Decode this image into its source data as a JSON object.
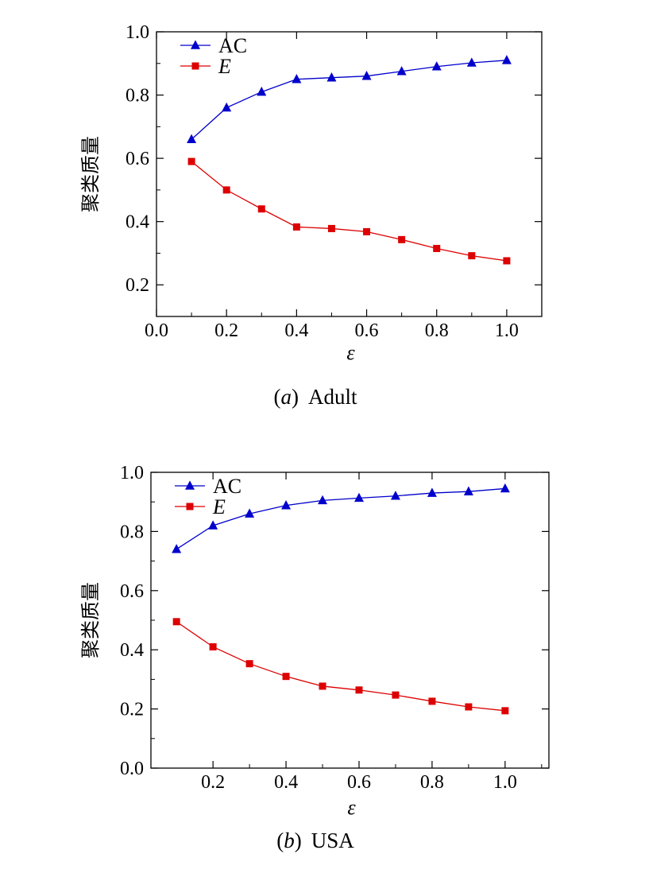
{
  "chart_data": [
    {
      "type": "line",
      "caption_tag": "a",
      "caption_name": "Adult",
      "xlabel": "ε",
      "ylabel": "聚类质量",
      "xlim": [
        0.0,
        1.1
      ],
      "ylim": [
        0.1,
        1.0
      ],
      "xticks": [
        "0.0",
        "0.2",
        "0.4",
        "0.6",
        "0.8",
        "1.0"
      ],
      "yticks": [
        "0.2",
        "0.4",
        "0.6",
        "0.8",
        "1.0"
      ],
      "grid": false,
      "legend_position": "top-left",
      "x": [
        0.1,
        0.2,
        0.3,
        0.4,
        0.5,
        0.6,
        0.7,
        0.8,
        0.9,
        1.0
      ],
      "series": [
        {
          "name": "AC",
          "italic": false,
          "color": "#0000cc",
          "marker": "triangle",
          "values": [
            0.66,
            0.76,
            0.81,
            0.85,
            0.855,
            0.86,
            0.875,
            0.89,
            0.902,
            0.91
          ]
        },
        {
          "name": "E",
          "italic": true,
          "color": "#dd0000",
          "marker": "square",
          "values": [
            0.59,
            0.5,
            0.44,
            0.383,
            0.378,
            0.368,
            0.343,
            0.315,
            0.292,
            0.276
          ]
        }
      ]
    },
    {
      "type": "line",
      "caption_tag": "b",
      "caption_name": "USA",
      "xlabel": "ε",
      "ylabel": "聚类质量",
      "xlim": [
        0.03,
        1.12
      ],
      "ylim": [
        0.0,
        1.0
      ],
      "xticks": [
        "0.2",
        "0.4",
        "0.6",
        "0.8",
        "1.0"
      ],
      "yticks": [
        "0.0",
        "0.2",
        "0.4",
        "0.6",
        "0.8",
        "1.0"
      ],
      "grid": false,
      "legend_position": "top-left",
      "x": [
        0.1,
        0.2,
        0.3,
        0.4,
        0.5,
        0.6,
        0.7,
        0.8,
        0.9,
        1.0
      ],
      "series": [
        {
          "name": "AC",
          "italic": false,
          "color": "#0000cc",
          "marker": "triangle",
          "values": [
            0.74,
            0.82,
            0.86,
            0.888,
            0.905,
            0.913,
            0.92,
            0.93,
            0.935,
            0.945
          ]
        },
        {
          "name": "E",
          "italic": true,
          "color": "#dd0000",
          "marker": "square",
          "values": [
            0.495,
            0.41,
            0.353,
            0.31,
            0.277,
            0.264,
            0.247,
            0.226,
            0.207,
            0.194
          ]
        }
      ]
    }
  ]
}
